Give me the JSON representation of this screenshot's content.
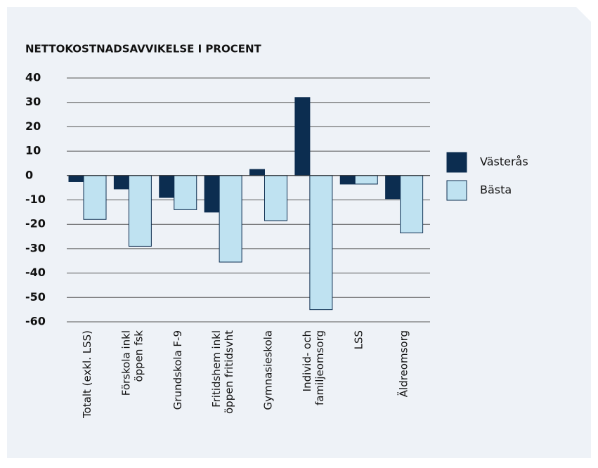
{
  "chart_data": {
    "type": "bar",
    "title": "NETTOKOSTNADSAVVIKELSE I PROCENT",
    "categories": [
      [
        "Totalt (exkl. LSS)"
      ],
      [
        "Förskola inkl",
        "öppen fsk"
      ],
      [
        "Grundskola F-9"
      ],
      [
        "Fritidshem inkl",
        "öppen fritidsvht"
      ],
      [
        "Gymnasieskola"
      ],
      [
        "Individ- och",
        "familjeomsorg"
      ],
      [
        "LSS"
      ],
      [
        "Äldreomsorg"
      ]
    ],
    "series": [
      {
        "name": "Västerås",
        "color": "#0c2d50",
        "values": [
          -2.5,
          -5.5,
          -9,
          -15,
          2.5,
          32,
          -3.5,
          -9.5
        ]
      },
      {
        "name": "Bästa",
        "color": "#bfe2f1",
        "values": [
          -18,
          -29,
          -14,
          -35.5,
          -18.5,
          -55,
          -3.5,
          -23.5
        ]
      }
    ],
    "ylim": [
      -60,
      40
    ],
    "yticks": [
      -60,
      -50,
      -40,
      -30,
      -20,
      -10,
      0,
      10,
      20,
      30,
      40
    ],
    "grid": true,
    "legend": "right"
  }
}
